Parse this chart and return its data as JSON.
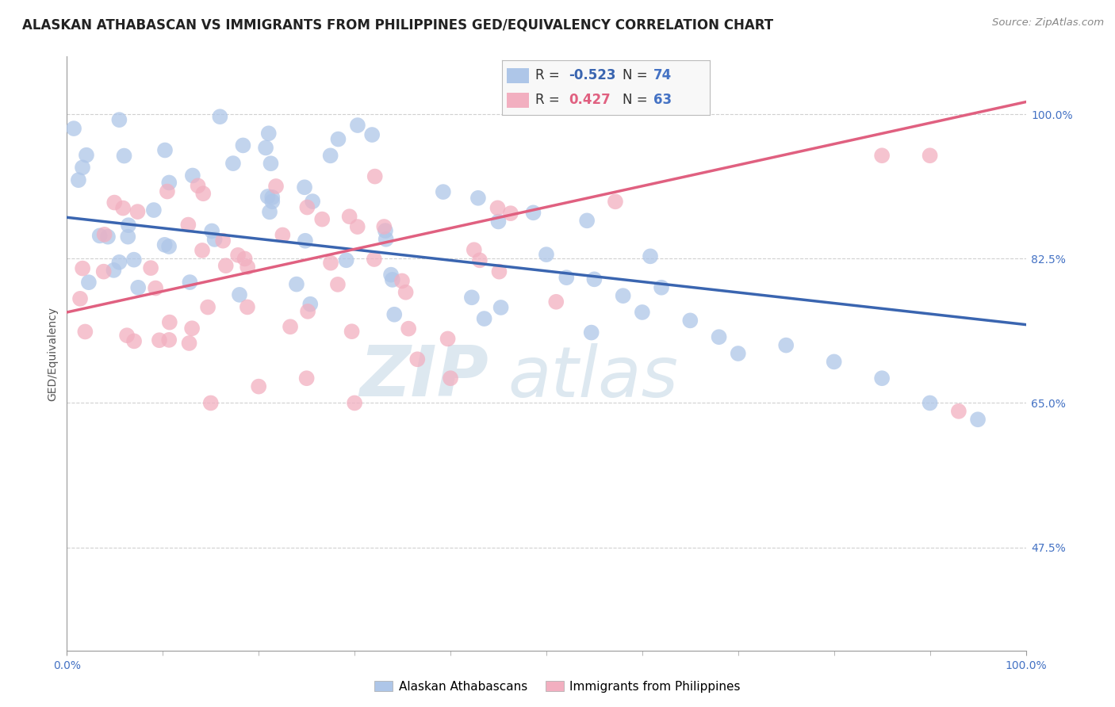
{
  "title": "ALASKAN ATHABASCAN VS IMMIGRANTS FROM PHILIPPINES GED/EQUIVALENCY CORRELATION CHART",
  "source": "Source: ZipAtlas.com",
  "ylabel": "GED/Equivalency",
  "xlim": [
    0.0,
    100.0
  ],
  "ylim": [
    35.0,
    107.0
  ],
  "yticks": [
    47.5,
    65.0,
    82.5,
    100.0
  ],
  "blue_R": -0.523,
  "blue_N": 74,
  "pink_R": 0.427,
  "pink_N": 63,
  "blue_color": "#aec6e8",
  "pink_color": "#f2afc0",
  "blue_line_color": "#3a65b0",
  "pink_line_color": "#e06080",
  "tick_color": "#4472c4",
  "background_color": "#ffffff",
  "grid_color": "#d0d0d0",
  "blue_line_start_y": 87.5,
  "blue_line_end_y": 74.5,
  "pink_line_start_y": 76.0,
  "pink_line_end_y": 101.5,
  "watermark_color": "#dde8f0",
  "title_fontsize": 12,
  "axis_label_fontsize": 10,
  "tick_fontsize": 10,
  "legend_fontsize": 12
}
